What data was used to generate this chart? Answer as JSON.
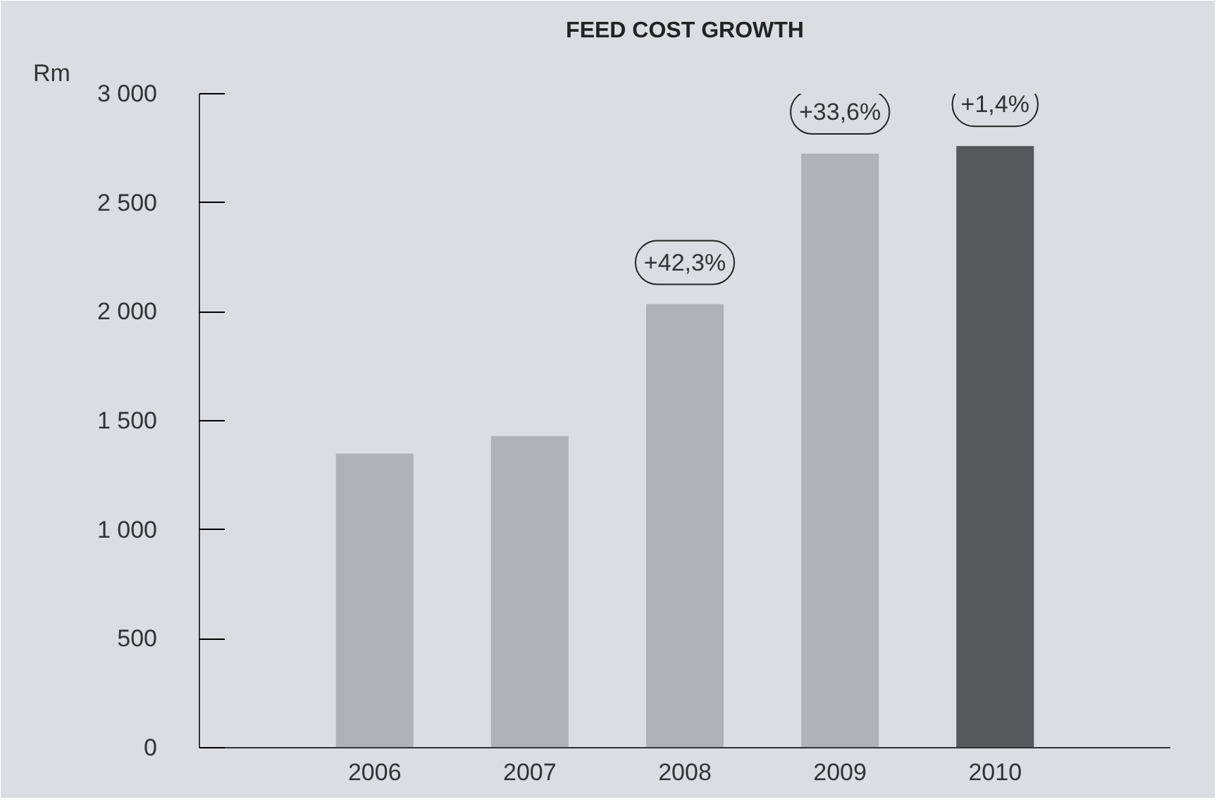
{
  "chart_data": {
    "type": "bar",
    "title": "FEED COST GROWTH",
    "ylabel": "Rm",
    "categories": [
      "2006",
      "2007",
      "2008",
      "2009",
      "2010"
    ],
    "values": [
      1350,
      1430,
      2035,
      2725,
      2760
    ],
    "colors": [
      "#b1b2b6",
      "#b1b2b6",
      "#b1b2b6",
      "#b1b2b6",
      "#555759"
    ],
    "ylim": [
      0,
      3000
    ],
    "yticks": [
      {
        "value": 0,
        "label": "0"
      },
      {
        "value": 500,
        "label": "500"
      },
      {
        "value": 1000,
        "label": "1 000"
      },
      {
        "value": 1500,
        "label": "1 500"
      },
      {
        "value": 2000,
        "label": "2 000"
      },
      {
        "value": 2500,
        "label": "2 500"
      },
      {
        "value": 3000,
        "label": "3 000"
      }
    ],
    "annotations": [
      {
        "text": "+42,3%",
        "x": "2008",
        "y": 2035
      },
      {
        "text": "+33,6%",
        "x": "2009",
        "y": 2725
      },
      {
        "text": "+1,4%",
        "x": "2010",
        "y": 2760
      }
    ],
    "grid": false
  }
}
